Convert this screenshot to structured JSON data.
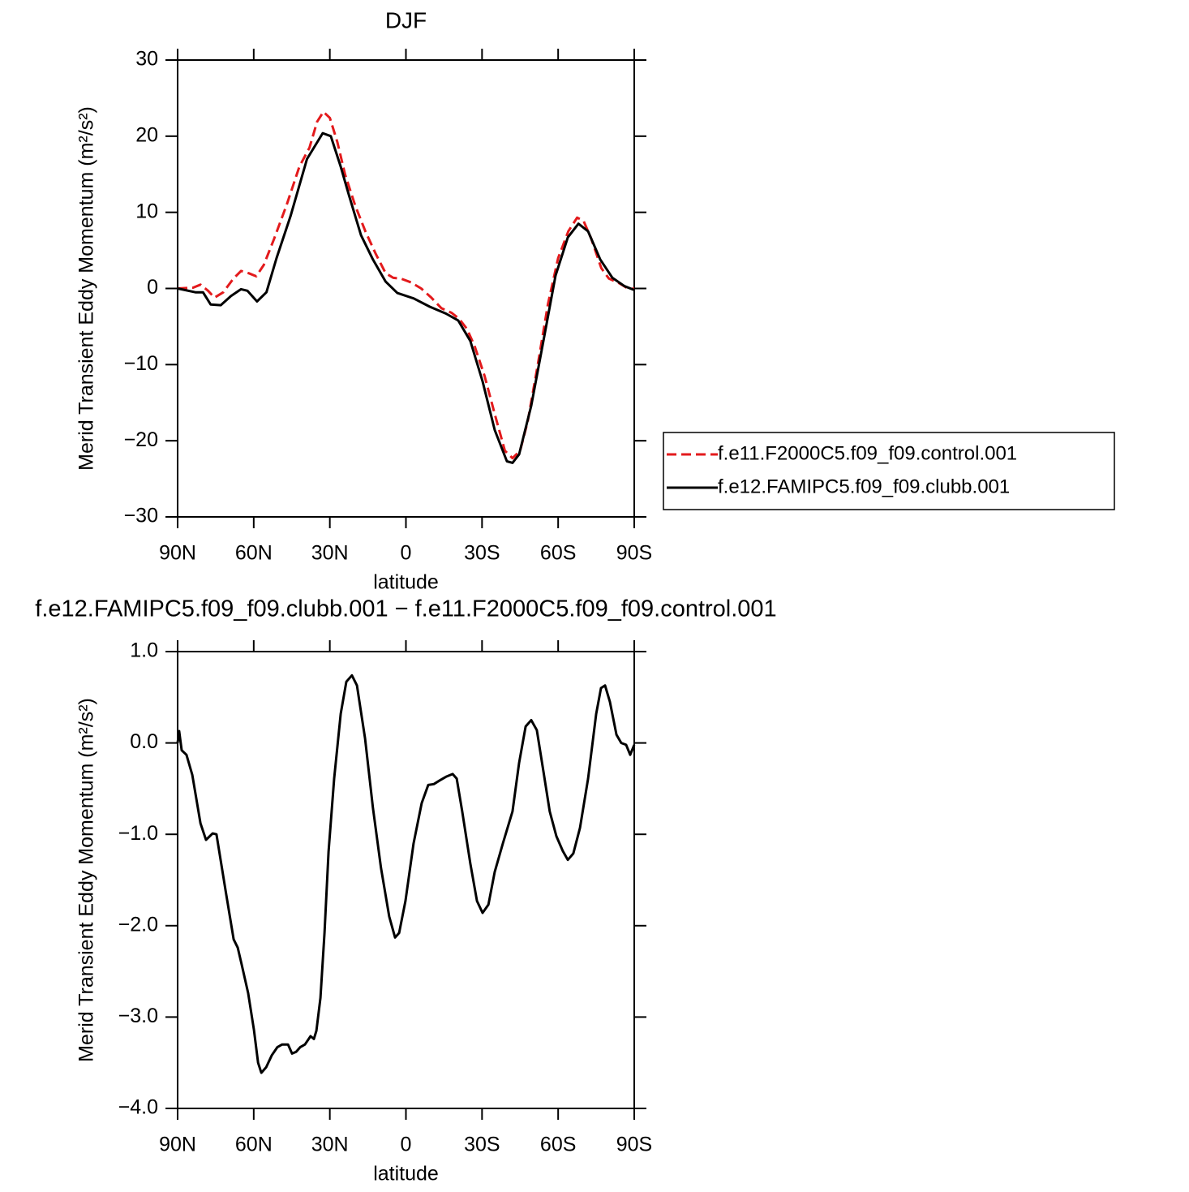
{
  "chart_data": [
    {
      "type": "line",
      "title": "DJF",
      "xlabel": "latitude",
      "ylabel": "Merid Transient Eddy Momentum (m²/s²)",
      "xlim": [
        90,
        -90
      ],
      "ylim": [
        -30,
        30
      ],
      "xticks": [
        {
          "value": 90,
          "label": "90N"
        },
        {
          "value": 60,
          "label": "60N"
        },
        {
          "value": 30,
          "label": "30N"
        },
        0,
        {
          "value": -30,
          "label": "30S"
        },
        {
          "value": -60,
          "label": "60S"
        },
        {
          "value": -90,
          "label": "90S"
        }
      ],
      "yticks": [
        {
          "value": -30,
          "label": "−30"
        },
        {
          "value": -20,
          "label": "−20"
        },
        {
          "value": -10,
          "label": "−10"
        },
        0,
        10,
        20,
        30
      ],
      "legend": "right",
      "series": [
        {
          "name": "f.e11.F2000C5.f09_f09.control.001",
          "color": "#e31a1c",
          "linestyle": "dashed",
          "x": [
            90,
            84,
            81,
            78,
            75.5,
            72,
            68,
            65,
            62,
            59,
            56,
            52,
            47,
            42,
            38,
            35,
            32.5,
            30,
            27,
            24,
            20,
            16,
            12,
            8,
            5,
            2,
            -2,
            -6,
            -10,
            -14,
            -18,
            -21,
            -24,
            -27,
            -31,
            -35,
            -39,
            -42,
            -45,
            -48,
            -52,
            -56,
            -60,
            -64,
            -67.5,
            -70,
            -73,
            -77,
            -80,
            -84,
            -88,
            -90
          ],
          "values": [
            0,
            0.1,
            0.5,
            -0.3,
            -1.2,
            -0.5,
            1.3,
            2.3,
            2.0,
            1.6,
            3.1,
            6.5,
            11,
            16,
            18.5,
            21.9,
            23.2,
            22.4,
            19.2,
            15,
            10.9,
            7.5,
            4.6,
            2.0,
            1.4,
            1.3,
            0.8,
            0,
            -1.2,
            -2.6,
            -3.2,
            -4,
            -5.3,
            -7.5,
            -11.5,
            -16.5,
            -21.3,
            -22.3,
            -21.3,
            -17.5,
            -10,
            -2,
            4,
            7.5,
            9.3,
            8.9,
            6.6,
            2.7,
            1.3,
            0.7,
            -0.1,
            0
          ]
        },
        {
          "name": "f.e12.FAMIPC5.f09_f09.clubb.001",
          "color": "#000000",
          "linestyle": "solid",
          "x": [
            90,
            83,
            80,
            77,
            73,
            69,
            65,
            62.5,
            58.7,
            55,
            51,
            45.5,
            39,
            32.8,
            29.6,
            25.7,
            22.5,
            17.7,
            13,
            8,
            3.4,
            -3,
            -9.4,
            -15.8,
            -20.6,
            -25.4,
            -30.2,
            -35,
            -39.8,
            -42,
            -44.6,
            -49.4,
            -54.2,
            -59,
            -63.8,
            -68,
            -71.8,
            -76.6,
            -81.4,
            -86.2,
            -90
          ],
          "values": [
            0,
            -0.5,
            -0.5,
            -2.1,
            -2.2,
            -1,
            -0.1,
            -0.3,
            -1.7,
            -0.5,
            4,
            9.5,
            17,
            20.4,
            20,
            16,
            12.3,
            7,
            3.8,
            0.9,
            -0.6,
            -1.3,
            -2.4,
            -3.3,
            -4.2,
            -6.9,
            -12.2,
            -18.6,
            -22.7,
            -22.9,
            -21.8,
            -15.4,
            -6.9,
            1.7,
            6.7,
            8.5,
            7.5,
            3.8,
            1.4,
            0.3,
            -0.2
          ]
        }
      ]
    },
    {
      "type": "line",
      "title": "f.e12.FAMIPC5.f09_f09.clubb.001 − f.e11.F2000C5.f09_f09.control.001",
      "xlabel": "latitude",
      "ylabel": "Merid Transient Eddy Momentum (m²/s²)",
      "xlim": [
        90,
        -90
      ],
      "ylim": [
        -4,
        1
      ],
      "xticks": [
        {
          "value": 90,
          "label": "90N"
        },
        {
          "value": 60,
          "label": "60N"
        },
        {
          "value": 30,
          "label": "30N"
        },
        0,
        {
          "value": -30,
          "label": "30S"
        },
        {
          "value": -60,
          "label": "60S"
        },
        {
          "value": -90,
          "label": "90S"
        }
      ],
      "yticks": [
        {
          "value": -4,
          "label": "−4.0"
        },
        {
          "value": -3,
          "label": "−3.0"
        },
        {
          "value": -2,
          "label": "−2.0"
        },
        {
          "value": -1,
          "label": "−1.0"
        },
        {
          "value": 0,
          "label": "0.0"
        },
        {
          "value": 1,
          "label": "1.0"
        }
      ],
      "series": [
        {
          "color": "#000000",
          "linestyle": "solid",
          "x": [
            90,
            89.4,
            88.4,
            86.5,
            84.2,
            81,
            78.8,
            76.2,
            74.7,
            71,
            67.9,
            66.3,
            64.7,
            62.2,
            59.9,
            58.3,
            57,
            55.1,
            52.9,
            50.7,
            48.8,
            46.5,
            44.9,
            43.3,
            41.7,
            39.8,
            37.6,
            36.3,
            35.3,
            33.7,
            32.1,
            30.5,
            28.3,
            25.7,
            23.5,
            21.3,
            19.3,
            16.1,
            13,
            9.8,
            6.6,
            4.3,
            2.7,
            0.2,
            -3,
            -6.2,
            -8.8,
            -11,
            -13.3,
            -15.8,
            -18.4,
            -20,
            -22.2,
            -25.4,
            -28,
            -30.2,
            -32.5,
            -35,
            -38.2,
            -42,
            -44.6,
            -47.2,
            -49.4,
            -51.6,
            -54.2,
            -56.7,
            -59.3,
            -61.8,
            -63.8,
            -66,
            -68.6,
            -71.8,
            -75,
            -76.9,
            -78.5,
            -80.4,
            -83,
            -84.9,
            -86.8,
            -88.4,
            -90
          ],
          "values": [
            0,
            0.13,
            -0.08,
            -0.13,
            -0.35,
            -0.88,
            -1.06,
            -0.99,
            -1.0,
            -1.63,
            -2.15,
            -2.24,
            -2.43,
            -2.74,
            -3.14,
            -3.5,
            -3.61,
            -3.55,
            -3.42,
            -3.33,
            -3.3,
            -3.3,
            -3.4,
            -3.38,
            -3.33,
            -3.3,
            -3.21,
            -3.24,
            -3.15,
            -2.79,
            -2.08,
            -1.19,
            -0.39,
            0.32,
            0.67,
            0.74,
            0.63,
            0.05,
            -0.71,
            -1.37,
            -1.9,
            -2.13,
            -2.08,
            -1.73,
            -1.1,
            -0.66,
            -0.46,
            -0.45,
            -0.41,
            -0.37,
            -0.34,
            -0.39,
            -0.75,
            -1.32,
            -1.73,
            -1.86,
            -1.77,
            -1.41,
            -1.1,
            -0.75,
            -0.22,
            0.18,
            0.25,
            0.14,
            -0.31,
            -0.75,
            -1.02,
            -1.18,
            -1.28,
            -1.21,
            -0.93,
            -0.39,
            0.32,
            0.6,
            0.63,
            0.45,
            0.09,
            0,
            -0.02,
            -0.13,
            -0.02
          ]
        }
      ]
    }
  ]
}
